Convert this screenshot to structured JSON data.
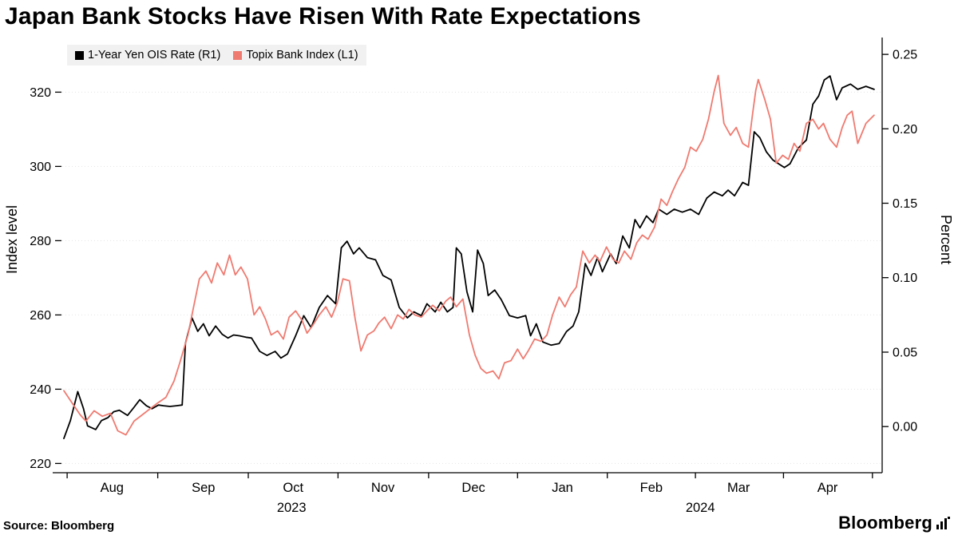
{
  "title": "Japan Bank Stocks Have Risen With Rate Expectations",
  "source": "Source: Bloomberg",
  "logo_text": "Bloomberg",
  "legend": [
    {
      "label": "1-Year Yen OIS Rate (R1)",
      "color": "#000000"
    },
    {
      "label": "Topix Bank Index (L1)",
      "color": "#EF7A70"
    }
  ],
  "chart_data": {
    "type": "line",
    "title": "Japan Bank Stocks Have Risen With Rate Expectations",
    "grid": "horizontal-dotted",
    "legend_position": "top-left",
    "left_axis": {
      "label": "Index level",
      "tick_values": [
        320,
        300,
        280,
        260,
        240,
        220
      ],
      "tick_labels": [
        "320",
        "300",
        "280",
        "260",
        "240",
        "220"
      ],
      "range": [
        217.5,
        333
      ]
    },
    "right_axis": {
      "label": "Percent",
      "tick_values": [
        0.25,
        0.2,
        0.15,
        0.1,
        0.05,
        0.0
      ],
      "tick_labels": [
        "0.25",
        "0.20",
        "0.15",
        "0.10",
        "0.05",
        "0.00"
      ],
      "range": [
        -0.031,
        0.257
      ]
    },
    "x_axis": {
      "month_labels": [
        {
          "label": "Aug",
          "t": 0.061
        },
        {
          "label": "Sep",
          "t": 0.173
        },
        {
          "label": "Oct",
          "t": 0.283
        },
        {
          "label": "Nov",
          "t": 0.393
        },
        {
          "label": "Dec",
          "t": 0.504
        },
        {
          "label": "Jan",
          "t": 0.613
        },
        {
          "label": "Feb",
          "t": 0.722
        },
        {
          "label": "Mar",
          "t": 0.829
        },
        {
          "label": "Apr",
          "t": 0.938
        }
      ],
      "year_labels": [
        {
          "label": "2023",
          "t": 0.281
        },
        {
          "label": "2024",
          "t": 0.782
        }
      ],
      "boundary_ticks": [
        0.006,
        0.117,
        0.228,
        0.338,
        0.449,
        0.558,
        0.668,
        0.776,
        0.884,
        0.993
      ]
    },
    "series": [
      {
        "name": "1-Year Yen OIS Rate (R1)",
        "axis": "right",
        "color": "#000000",
        "points": [
          [
            0.002,
            -0.008
          ],
          [
            0.01,
            0.004
          ],
          [
            0.019,
            0.0235
          ],
          [
            0.026,
            0.012
          ],
          [
            0.031,
            0.0005
          ],
          [
            0.041,
            -0.002
          ],
          [
            0.048,
            0.004
          ],
          [
            0.056,
            0.006
          ],
          [
            0.063,
            0.01
          ],
          [
            0.07,
            0.011
          ],
          [
            0.08,
            0.0075
          ],
          [
            0.088,
            0.013
          ],
          [
            0.095,
            0.018
          ],
          [
            0.103,
            0.014
          ],
          [
            0.11,
            0.012
          ],
          [
            0.118,
            0.0145
          ],
          [
            0.124,
            0.014
          ],
          [
            0.132,
            0.0135
          ],
          [
            0.14,
            0.014
          ],
          [
            0.147,
            0.0145
          ],
          [
            0.151,
            0.056
          ],
          [
            0.159,
            0.073
          ],
          [
            0.166,
            0.064
          ],
          [
            0.173,
            0.069
          ],
          [
            0.18,
            0.061
          ],
          [
            0.188,
            0.0675
          ],
          [
            0.196,
            0.062
          ],
          [
            0.203,
            0.0595
          ],
          [
            0.21,
            0.0615
          ],
          [
            0.217,
            0.061
          ],
          [
            0.225,
            0.06
          ],
          [
            0.232,
            0.0595
          ],
          [
            0.242,
            0.0505
          ],
          [
            0.251,
            0.0478
          ],
          [
            0.261,
            0.0505
          ],
          [
            0.268,
            0.046
          ],
          [
            0.276,
            0.0488
          ],
          [
            0.286,
            0.061
          ],
          [
            0.296,
            0.0745
          ],
          [
            0.305,
            0.0665
          ],
          [
            0.315,
            0.08
          ],
          [
            0.325,
            0.088
          ],
          [
            0.335,
            0.0825
          ],
          [
            0.342,
            0.12
          ],
          [
            0.349,
            0.1245
          ],
          [
            0.357,
            0.116
          ],
          [
            0.364,
            0.12
          ],
          [
            0.374,
            0.1135
          ],
          [
            0.384,
            0.112
          ],
          [
            0.393,
            0.1015
          ],
          [
            0.403,
            0.0985
          ],
          [
            0.413,
            0.08
          ],
          [
            0.423,
            0.073
          ],
          [
            0.431,
            0.077
          ],
          [
            0.44,
            0.0745
          ],
          [
            0.447,
            0.0825
          ],
          [
            0.457,
            0.077
          ],
          [
            0.464,
            0.0835
          ],
          [
            0.472,
            0.077
          ],
          [
            0.479,
            0.08
          ],
          [
            0.483,
            0.12
          ],
          [
            0.489,
            0.116
          ],
          [
            0.496,
            0.0905
          ],
          [
            0.503,
            0.077
          ],
          [
            0.509,
            0.1185
          ],
          [
            0.516,
            0.1095
          ],
          [
            0.522,
            0.088
          ],
          [
            0.53,
            0.0917
          ],
          [
            0.538,
            0.0853
          ],
          [
            0.548,
            0.0745
          ],
          [
            0.558,
            0.073
          ],
          [
            0.568,
            0.0745
          ],
          [
            0.574,
            0.061
          ],
          [
            0.581,
            0.069
          ],
          [
            0.589,
            0.0568
          ],
          [
            0.599,
            0.0547
          ],
          [
            0.609,
            0.0558
          ],
          [
            0.618,
            0.0638
          ],
          [
            0.626,
            0.0675
          ],
          [
            0.633,
            0.077
          ],
          [
            0.641,
            0.1095
          ],
          [
            0.648,
            0.1015
          ],
          [
            0.656,
            0.1135
          ],
          [
            0.662,
            0.104
          ],
          [
            0.672,
            0.116
          ],
          [
            0.679,
            0.1095
          ],
          [
            0.687,
            0.128
          ],
          [
            0.695,
            0.12
          ],
          [
            0.702,
            0.139
          ],
          [
            0.708,
            0.1335
          ],
          [
            0.716,
            0.1415
          ],
          [
            0.724,
            0.137
          ],
          [
            0.731,
            0.146
          ],
          [
            0.741,
            0.1425
          ],
          [
            0.75,
            0.146
          ],
          [
            0.76,
            0.144
          ],
          [
            0.77,
            0.146
          ],
          [
            0.78,
            0.1425
          ],
          [
            0.79,
            0.1535
          ],
          [
            0.799,
            0.1575
          ],
          [
            0.809,
            0.155
          ],
          [
            0.816,
            0.1588
          ],
          [
            0.824,
            0.155
          ],
          [
            0.834,
            0.164
          ],
          [
            0.841,
            0.162
          ],
          [
            0.848,
            0.198
          ],
          [
            0.855,
            0.194
          ],
          [
            0.863,
            0.1845
          ],
          [
            0.871,
            0.179
          ],
          [
            0.878,
            0.1765
          ],
          [
            0.885,
            0.174
          ],
          [
            0.892,
            0.1765
          ],
          [
            0.902,
            0.187
          ],
          [
            0.912,
            0.1925
          ],
          [
            0.92,
            0.2165
          ],
          [
            0.927,
            0.222
          ],
          [
            0.934,
            0.2328
          ],
          [
            0.941,
            0.2355
          ],
          [
            0.949,
            0.2195
          ],
          [
            0.956,
            0.2275
          ],
          [
            0.966,
            0.23
          ],
          [
            0.975,
            0.2265
          ],
          [
            0.985,
            0.2285
          ],
          [
            0.995,
            0.2265
          ]
        ]
      },
      {
        "name": "Topix Bank Index (L1)",
        "axis": "left",
        "color": "#EF7A70",
        "points": [
          [
            0.002,
            239.6
          ],
          [
            0.012,
            236.3
          ],
          [
            0.022,
            233.1
          ],
          [
            0.029,
            231.4
          ],
          [
            0.039,
            234.2
          ],
          [
            0.049,
            232.7
          ],
          [
            0.059,
            233.5
          ],
          [
            0.068,
            228.8
          ],
          [
            0.078,
            227.7
          ],
          [
            0.088,
            231.4
          ],
          [
            0.098,
            233.1
          ],
          [
            0.108,
            234.8
          ],
          [
            0.117,
            236.3
          ],
          [
            0.127,
            237.8
          ],
          [
            0.137,
            242.2
          ],
          [
            0.144,
            247.1
          ],
          [
            0.154,
            254.6
          ],
          [
            0.16,
            261.1
          ],
          [
            0.168,
            269.7
          ],
          [
            0.176,
            271.8
          ],
          [
            0.183,
            268.6
          ],
          [
            0.19,
            274.0
          ],
          [
            0.198,
            270.8
          ],
          [
            0.205,
            276.1
          ],
          [
            0.212,
            270.8
          ],
          [
            0.219,
            272.9
          ],
          [
            0.227,
            269.7
          ],
          [
            0.235,
            260.0
          ],
          [
            0.242,
            262.2
          ],
          [
            0.249,
            258.9
          ],
          [
            0.256,
            254.6
          ],
          [
            0.264,
            255.7
          ],
          [
            0.271,
            253.5
          ],
          [
            0.278,
            259.4
          ],
          [
            0.286,
            261.1
          ],
          [
            0.294,
            258.5
          ],
          [
            0.3,
            255.1
          ],
          [
            0.307,
            257.2
          ],
          [
            0.315,
            260.0
          ],
          [
            0.323,
            262.2
          ],
          [
            0.33,
            259.4
          ],
          [
            0.337,
            263.2
          ],
          [
            0.344,
            269.7
          ],
          [
            0.352,
            269.2
          ],
          [
            0.359,
            258.9
          ],
          [
            0.366,
            250.3
          ],
          [
            0.374,
            254.6
          ],
          [
            0.382,
            255.7
          ],
          [
            0.388,
            257.8
          ],
          [
            0.395,
            259.4
          ],
          [
            0.403,
            256.3
          ],
          [
            0.411,
            260.0
          ],
          [
            0.418,
            258.9
          ],
          [
            0.425,
            261.5
          ],
          [
            0.432,
            260.0
          ],
          [
            0.44,
            259.4
          ],
          [
            0.447,
            261.1
          ],
          [
            0.454,
            262.6
          ],
          [
            0.462,
            261.1
          ],
          [
            0.47,
            263.7
          ],
          [
            0.476,
            264.8
          ],
          [
            0.483,
            262.2
          ],
          [
            0.491,
            264.3
          ],
          [
            0.499,
            254.6
          ],
          [
            0.506,
            249.2
          ],
          [
            0.513,
            245.6
          ],
          [
            0.52,
            244.3
          ],
          [
            0.528,
            244.9
          ],
          [
            0.535,
            242.8
          ],
          [
            0.542,
            247.1
          ],
          [
            0.55,
            247.7
          ],
          [
            0.558,
            250.8
          ],
          [
            0.565,
            248.2
          ],
          [
            0.571,
            250.3
          ],
          [
            0.579,
            253.5
          ],
          [
            0.587,
            252.9
          ],
          [
            0.594,
            254.6
          ],
          [
            0.601,
            260.0
          ],
          [
            0.609,
            264.8
          ],
          [
            0.616,
            262.2
          ],
          [
            0.623,
            265.4
          ],
          [
            0.63,
            267.5
          ],
          [
            0.638,
            277.2
          ],
          [
            0.646,
            274.0
          ],
          [
            0.653,
            276.1
          ],
          [
            0.659,
            274.4
          ],
          [
            0.667,
            278.3
          ],
          [
            0.675,
            275.0
          ],
          [
            0.682,
            274.0
          ],
          [
            0.689,
            277.2
          ],
          [
            0.697,
            275.0
          ],
          [
            0.704,
            279.4
          ],
          [
            0.711,
            281.5
          ],
          [
            0.718,
            280.4
          ],
          [
            0.726,
            283.7
          ],
          [
            0.734,
            291.2
          ],
          [
            0.741,
            289.5
          ],
          [
            0.748,
            293.3
          ],
          [
            0.755,
            296.6
          ],
          [
            0.763,
            299.8
          ],
          [
            0.77,
            305.2
          ],
          [
            0.777,
            304.1
          ],
          [
            0.785,
            307.3
          ],
          [
            0.792,
            312.7
          ],
          [
            0.799,
            320.2
          ],
          [
            0.804,
            324.5
          ],
          [
            0.811,
            311.6
          ],
          [
            0.819,
            308.4
          ],
          [
            0.826,
            310.5
          ],
          [
            0.834,
            306.2
          ],
          [
            0.841,
            305.2
          ],
          [
            0.846,
            314.0
          ],
          [
            0.85,
            320.5
          ],
          [
            0.853,
            323.4
          ],
          [
            0.861,
            318.1
          ],
          [
            0.868,
            312.7
          ],
          [
            0.875,
            300.9
          ],
          [
            0.883,
            303.0
          ],
          [
            0.89,
            301.9
          ],
          [
            0.897,
            306.2
          ],
          [
            0.904,
            304.1
          ],
          [
            0.912,
            311.6
          ],
          [
            0.92,
            312.7
          ],
          [
            0.927,
            310.1
          ],
          [
            0.933,
            311.6
          ],
          [
            0.941,
            307.3
          ],
          [
            0.949,
            305.2
          ],
          [
            0.956,
            310.5
          ],
          [
            0.962,
            313.8
          ],
          [
            0.968,
            314.9
          ],
          [
            0.975,
            306.2
          ],
          [
            0.985,
            311.6
          ],
          [
            0.995,
            313.8
          ]
        ]
      }
    ]
  }
}
